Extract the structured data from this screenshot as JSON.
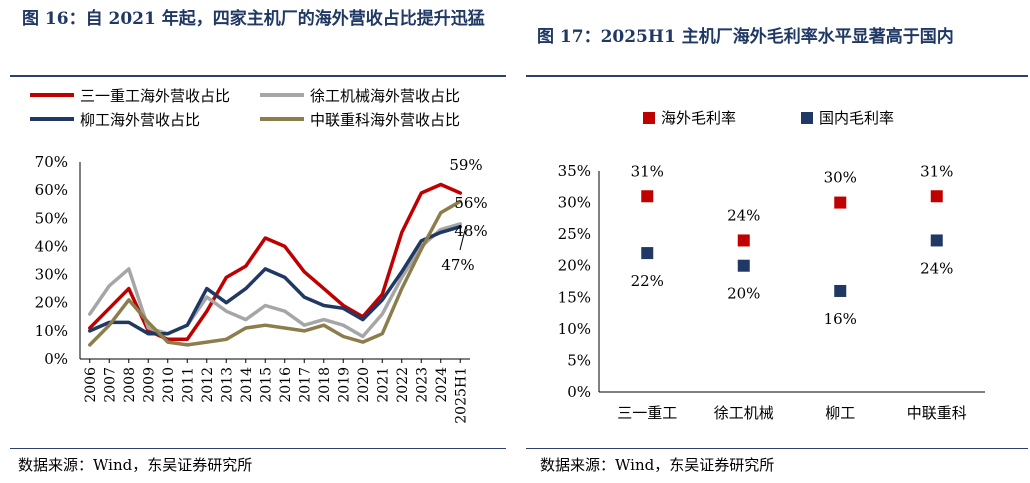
{
  "left_figure": {
    "title": "图 16：自 2021 年起，四家主机厂的海外营收占比提升迅猛",
    "source": "数据来源：Wind，东吴证券研究所"
  },
  "right_figure": {
    "title": "图 17：2025H1 主机厂海外毛利率水平显著高于国内",
    "source": "数据来源：Wind，东吴证券研究所"
  },
  "chart_data": [
    {
      "type": "line",
      "title": "图 16：自 2021 年起，四家主机厂的海外营收占比提升迅猛",
      "x": [
        "2006",
        "2007",
        "2008",
        "2009",
        "2010",
        "2011",
        "2012",
        "2013",
        "2014",
        "2015",
        "2016",
        "2017",
        "2018",
        "2019",
        "2020",
        "2021",
        "2022",
        "2023",
        "2024",
        "2025H1"
      ],
      "ylim": [
        0,
        70
      ],
      "yticks": [
        "0%",
        "10%",
        "20%",
        "30%",
        "40%",
        "50%",
        "60%",
        "70%"
      ],
      "legend_position": "top",
      "series": [
        {
          "name": "三一重工海外营收占比",
          "color": "#c00000",
          "values": [
            11,
            18,
            25,
            10,
            7,
            7,
            17,
            29,
            33,
            43,
            40,
            31,
            25,
            19,
            15,
            23,
            45,
            59,
            62,
            59
          ]
        },
        {
          "name": "徐工机械海外营收占比",
          "color": "#a6a6a6",
          "values": [
            16,
            26,
            32,
            11,
            9,
            12,
            22,
            17,
            14,
            19,
            17,
            12,
            14,
            12,
            8,
            16,
            29,
            40,
            46,
            48
          ]
        },
        {
          "name": "柳工海外营收占比",
          "color": "#1f3864",
          "values": [
            10,
            13,
            13,
            9,
            9,
            12,
            25,
            20,
            25,
            32,
            29,
            22,
            19,
            18,
            14,
            21,
            31,
            42,
            45,
            47
          ]
        },
        {
          "name": "中联重科海外营收占比",
          "color": "#8c7e4c",
          "values": [
            5,
            12,
            21,
            13,
            6,
            5,
            6,
            7,
            11,
            12,
            11,
            10,
            12,
            8,
            6,
            9,
            25,
            39,
            52,
            56
          ]
        }
      ],
      "annotations": [
        {
          "text": "59%",
          "series": "三一重工海外营收占比"
        },
        {
          "text": "56%",
          "series": "中联重科海外营收占比"
        },
        {
          "text": "48%",
          "series": "徐工机械海外营收占比"
        },
        {
          "text": "47%",
          "series": "柳工海外营收占比"
        }
      ]
    },
    {
      "type": "scatter",
      "title": "图 17：2025H1 主机厂海外毛利率水平显著高于国内",
      "categories": [
        "三一重工",
        "徐工机械",
        "柳工",
        "中联重科"
      ],
      "ylim": [
        0,
        35
      ],
      "yticks": [
        "0%",
        "5%",
        "10%",
        "15%",
        "20%",
        "25%",
        "30%",
        "35%"
      ],
      "legend_position": "top",
      "series": [
        {
          "name": "海外毛利率",
          "color": "#c00000",
          "values": [
            31,
            24,
            30,
            31
          ],
          "labels": [
            "31%",
            "24%",
            "30%",
            "31%"
          ]
        },
        {
          "name": "国内毛利率",
          "color": "#1f3864",
          "values": [
            22,
            20,
            16,
            24
          ],
          "labels": [
            "22%",
            "20%",
            "16%",
            "24%"
          ]
        }
      ]
    }
  ]
}
